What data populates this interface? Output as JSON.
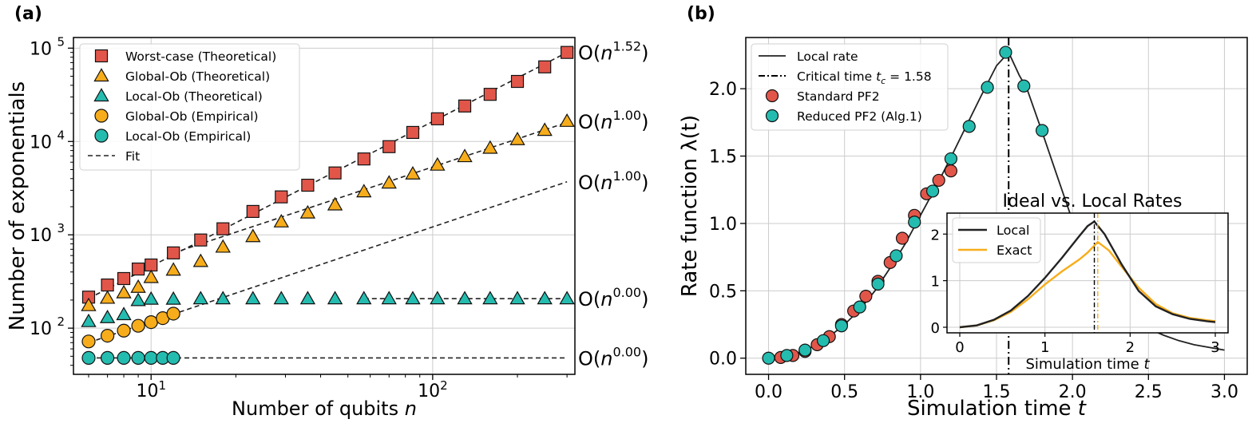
{
  "panels": {
    "a": {
      "label": "(a)"
    },
    "b": {
      "label": "(b)"
    }
  },
  "colors": {
    "red": "#e2564a",
    "orange": "#f7ad1b",
    "teal": "#25bcb0",
    "black": "#222222",
    "grid": "#cccccc"
  },
  "chart_data": [
    {
      "id": "a",
      "type": "scatter",
      "xscale": "log",
      "yscale": "log",
      "xlabel_main": "Number of qubits ",
      "xlabel_var": "n",
      "ylabel": "Number of exponentials",
      "xlim": [
        5.3,
        320
      ],
      "ylim": [
        32,
        130000
      ],
      "xticks": [
        {
          "value": 10,
          "base": "10",
          "exp": "1"
        },
        {
          "value": 100,
          "base": "10",
          "exp": "2"
        }
      ],
      "yticks": [
        {
          "value": 100,
          "base": "10",
          "exp": "2"
        },
        {
          "value": 1000,
          "base": "10",
          "exp": "3"
        },
        {
          "value": 10000,
          "base": "10",
          "exp": "4"
        },
        {
          "value": 100000,
          "base": "10",
          "exp": "5"
        }
      ],
      "legend": [
        {
          "label": "Worst-case (Theoretical)",
          "marker": "square",
          "color": "#e2564a"
        },
        {
          "label": "Global-Ob (Theoretical)",
          "marker": "triangle",
          "color": "#f7ad1b"
        },
        {
          "label": "Local-Ob (Theoretical)",
          "marker": "triangle",
          "color": "#25bcb0"
        },
        {
          "label": "Global-Ob (Empirical)",
          "marker": "circle",
          "color": "#f7ad1b"
        },
        {
          "label": "Local-Ob (Empirical)",
          "marker": "circle",
          "color": "#25bcb0"
        },
        {
          "label": "Fit",
          "marker": "dashed",
          "color": "#222222"
        }
      ],
      "series": [
        {
          "name": "Worst-case (Theoretical)",
          "marker": "square",
          "color": "#e2564a",
          "x": [
            6,
            7,
            8,
            9,
            10,
            12,
            15,
            18,
            23,
            29,
            36,
            45,
            57,
            70,
            85,
            104,
            130,
            160,
            200,
            250,
            300
          ],
          "y": [
            215,
            290,
            340,
            430,
            475,
            640,
            880,
            1160,
            1780,
            2550,
            3400,
            4600,
            6500,
            8800,
            12500,
            17500,
            24000,
            32000,
            44000,
            63000,
            90000
          ]
        },
        {
          "name": "Global-Ob (Theoretical)",
          "marker": "triangle",
          "color": "#f7ad1b",
          "x": [
            6,
            7,
            8,
            9,
            10,
            12,
            15,
            18,
            23,
            29,
            36,
            45,
            57,
            70,
            85,
            104,
            130,
            160,
            200,
            250,
            300
          ],
          "y": [
            175,
            210,
            240,
            275,
            350,
            420,
            520,
            740,
            960,
            1380,
            1720,
            2100,
            2900,
            3600,
            4500,
            5600,
            6900,
            8500,
            10500,
            13200,
            16500
          ]
        },
        {
          "name": "Local-Ob (Theoretical)",
          "marker": "triangle",
          "color": "#25bcb0",
          "x": [
            6,
            7,
            8,
            9,
            10,
            12,
            15,
            18,
            23,
            29,
            36,
            45,
            57,
            70,
            85,
            104,
            130,
            160,
            200,
            250,
            300
          ],
          "y": [
            118,
            130,
            140,
            198,
            205,
            205,
            207,
            207,
            207,
            207,
            207,
            207,
            207,
            207,
            207,
            207,
            207,
            207,
            207,
            207,
            207
          ]
        },
        {
          "name": "Global-Ob (Empirical)",
          "marker": "circle",
          "color": "#f7ad1b",
          "x": [
            6,
            7,
            8,
            9,
            10,
            11,
            12
          ],
          "y": [
            72,
            83,
            94,
            106,
            116,
            128,
            143
          ]
        },
        {
          "name": "Local-Ob (Empirical)",
          "marker": "circle",
          "color": "#25bcb0",
          "x": [
            6,
            7,
            8,
            9,
            10,
            11,
            12
          ],
          "y": [
            48,
            48,
            48,
            48,
            48,
            48,
            48
          ]
        }
      ],
      "fits": [
        {
          "x": [
            6,
            300
          ],
          "y": [
            208,
            90000
          ]
        },
        {
          "x": [
            12,
            300
          ],
          "y": [
            640,
            16000
          ]
        },
        {
          "x": [
            6,
            300
          ],
          "y": [
            70,
            3700
          ]
        },
        {
          "x": [
            57,
            300
          ],
          "y": [
            207,
            207
          ]
        },
        {
          "x": [
            6,
            300
          ],
          "y": [
            48,
            48
          ]
        }
      ],
      "annotations": [
        {
          "base": "O(n",
          "exp": "1.52",
          "close": ")",
          "anchor_y": 90000
        },
        {
          "base": "O(n",
          "exp": "1.00",
          "close": ")",
          "anchor_y": 16500
        },
        {
          "base": "O(n",
          "exp": "1.00",
          "close": ")",
          "anchor_y": 3700
        },
        {
          "base": "O(n",
          "exp": "0.00",
          "close": ")",
          "anchor_y": 207
        },
        {
          "base": "O(n",
          "exp": "0.00",
          "close": ")",
          "anchor_y": 48
        }
      ]
    },
    {
      "id": "b",
      "type": "line",
      "xlabel": "Simulation time ",
      "xlabel_var": "t",
      "ylabel": "Rate function λ(t)",
      "xlim": [
        -0.15,
        3.15
      ],
      "ylim": [
        -0.12,
        2.38
      ],
      "xticks": [
        0.0,
        0.5,
        1.0,
        1.5,
        2.0,
        2.5,
        3.0
      ],
      "xtick_labels": [
        "0.0",
        "0.5",
        "1.0",
        "1.5",
        "2.0",
        "2.5",
        "3.0"
      ],
      "yticks": [
        0.0,
        0.5,
        1.0,
        1.5,
        2.0
      ],
      "ytick_labels": [
        "0.0",
        "0.5",
        "1.0",
        "1.5",
        "2.0"
      ],
      "critical_time": 1.58,
      "legend": [
        {
          "label": "Local rate",
          "marker": "line"
        },
        {
          "label_pre": "Critical time ",
          "label_var": "t",
          "label_sub": "c",
          "label_post": " = 1.58",
          "marker": "dashdot"
        },
        {
          "label": "Standard PF2",
          "marker": "circle",
          "color": "#e2564a"
        },
        {
          "label": "Reduced PF2 (Alg.1)",
          "marker": "circle",
          "color": "#25bcb0"
        }
      ],
      "local_rate": {
        "x": [
          0,
          0.1,
          0.2,
          0.3,
          0.4,
          0.5,
          0.6,
          0.7,
          0.8,
          0.9,
          1.0,
          1.1,
          1.2,
          1.3,
          1.4,
          1.5,
          1.58,
          1.65,
          1.7,
          1.8,
          1.9,
          2.0,
          2.1,
          2.2,
          2.3,
          2.4,
          2.5,
          2.6,
          2.7,
          2.8,
          2.9,
          3.0
        ],
        "y": [
          0.0,
          0.01,
          0.04,
          0.09,
          0.16,
          0.25,
          0.36,
          0.5,
          0.67,
          0.85,
          1.06,
          1.27,
          1.49,
          1.72,
          1.95,
          2.17,
          2.27,
          2.1,
          2.0,
          1.68,
          1.35,
          1.02,
          0.75,
          0.55,
          0.4,
          0.3,
          0.22,
          0.17,
          0.13,
          0.1,
          0.08,
          0.06
        ]
      },
      "standard_pf2": {
        "x": [
          0.08,
          0.16,
          0.24,
          0.32,
          0.4,
          0.48,
          0.56,
          0.64,
          0.72,
          0.8,
          0.88,
          0.96,
          1.04,
          1.12,
          1.2
        ],
        "y": [
          0.005,
          0.02,
          0.05,
          0.1,
          0.16,
          0.25,
          0.35,
          0.46,
          0.57,
          0.71,
          0.89,
          1.06,
          1.22,
          1.32,
          1.39
        ]
      },
      "reduced_pf2": {
        "x": [
          0.0,
          0.12,
          0.24,
          0.36,
          0.48,
          0.6,
          0.72,
          0.84,
          0.96,
          1.08,
          1.2,
          1.32,
          1.44,
          1.56,
          1.68,
          1.8
        ],
        "y": [
          0.0,
          0.02,
          0.06,
          0.13,
          0.24,
          0.38,
          0.55,
          0.76,
          1.01,
          1.24,
          1.48,
          1.72,
          2.01,
          2.27,
          2.02,
          1.69
        ]
      },
      "inset": {
        "title": "Ideal vs. Local Rates",
        "xlabel": "Simulation time ",
        "xlabel_var": "t",
        "xlim": [
          -0.15,
          3.15
        ],
        "ylim": [
          -0.12,
          2.45
        ],
        "xticks": [
          0,
          1,
          2,
          3
        ],
        "xtick_labels": [
          "0",
          "1",
          "2",
          "3"
        ],
        "yticks": [
          0,
          1,
          2
        ],
        "ytick_labels": [
          "0",
          "1",
          "2"
        ],
        "local_critical": 1.58,
        "exact_critical": 1.62,
        "legend": [
          {
            "label": "Local",
            "color": "#222222"
          },
          {
            "label": "Exact",
            "color": "#f7ad1b"
          }
        ],
        "local": {
          "x": [
            0,
            0.2,
            0.4,
            0.6,
            0.8,
            1.0,
            1.2,
            1.4,
            1.5,
            1.58,
            1.7,
            1.9,
            2.1,
            2.3,
            2.5,
            2.7,
            2.9,
            3.0
          ],
          "y": [
            0.0,
            0.04,
            0.16,
            0.36,
            0.67,
            1.06,
            1.49,
            1.95,
            2.17,
            2.27,
            2.0,
            1.35,
            0.78,
            0.45,
            0.28,
            0.18,
            0.13,
            0.11
          ]
        },
        "exact": {
          "x": [
            0,
            0.2,
            0.4,
            0.6,
            0.8,
            1.0,
            1.2,
            1.4,
            1.5,
            1.62,
            1.75,
            1.9,
            2.1,
            2.3,
            2.5,
            2.7,
            2.9,
            3.0
          ],
          "y": [
            0.0,
            0.04,
            0.15,
            0.33,
            0.6,
            0.92,
            1.2,
            1.45,
            1.6,
            1.83,
            1.65,
            1.3,
            0.85,
            0.5,
            0.3,
            0.2,
            0.15,
            0.13
          ]
        }
      }
    }
  ]
}
